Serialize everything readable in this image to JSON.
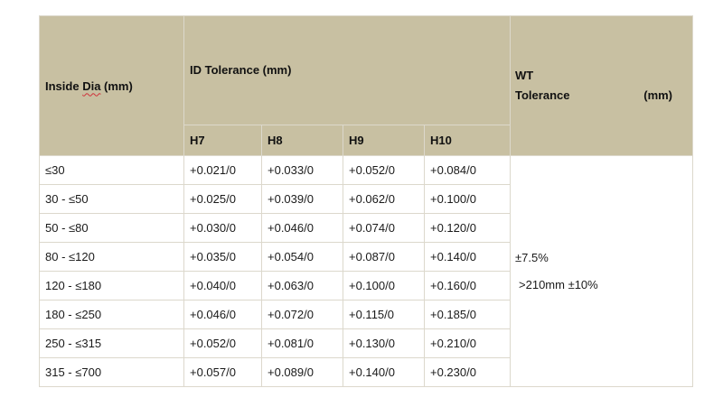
{
  "header": {
    "inside_dia_prefix": "Inside ",
    "inside_dia_word": "Dia",
    "inside_dia_suffix": " (mm)",
    "id_tolerance": "ID Tolerance (mm)",
    "wt_line1": "WT",
    "wt_line2_a": "Tolerance",
    "wt_line2_b": "(mm)",
    "grades": [
      "H7",
      "H8",
      "H9",
      "H10"
    ]
  },
  "rows": [
    {
      "range": "≤30",
      "h7": "+0.021/0",
      "h8": "+0.033/0",
      "h9": "+0.052/0",
      "h10": "+0.084/0"
    },
    {
      "range": "30 - ≤50",
      "h7": "+0.025/0",
      "h8": "+0.039/0",
      "h9": "+0.062/0",
      "h10": "+0.100/0"
    },
    {
      "range": "50 - ≤80",
      "h7": "+0.030/0",
      "h8": "+0.046/0",
      "h9": "+0.074/0",
      "h10": "+0.120/0"
    },
    {
      "range": "80 - ≤120",
      "h7": "+0.035/0",
      "h8": "+0.054/0",
      "h9": "+0.087/0",
      "h10": "+0.140/0"
    },
    {
      "range": "120 - ≤180",
      "h7": "+0.040/0",
      "h8": "+0.063/0",
      "h9": "+0.100/0",
      "h10": "+0.160/0"
    },
    {
      "range": "180 - ≤250",
      "h7": "+0.046/0",
      "h8": "+0.072/0",
      "h9": "+0.115/0",
      "h10": "+0.185/0"
    },
    {
      "range": "250 - ≤315",
      "h7": "+0.052/0",
      "h8": "+0.081/0",
      "h9": "+0.130/0",
      "h10": "+0.210/0"
    },
    {
      "range": "315 - ≤700",
      "h7": "+0.057/0",
      "h8": "+0.089/0",
      "h9": "+0.140/0",
      "h10": "+0.230/0"
    }
  ],
  "wt_values": {
    "line1": "±7.5%",
    "line2": ">210mm ±10%"
  },
  "colors": {
    "header_bg": "#c8c0a2",
    "border": "#dcd8cc"
  }
}
